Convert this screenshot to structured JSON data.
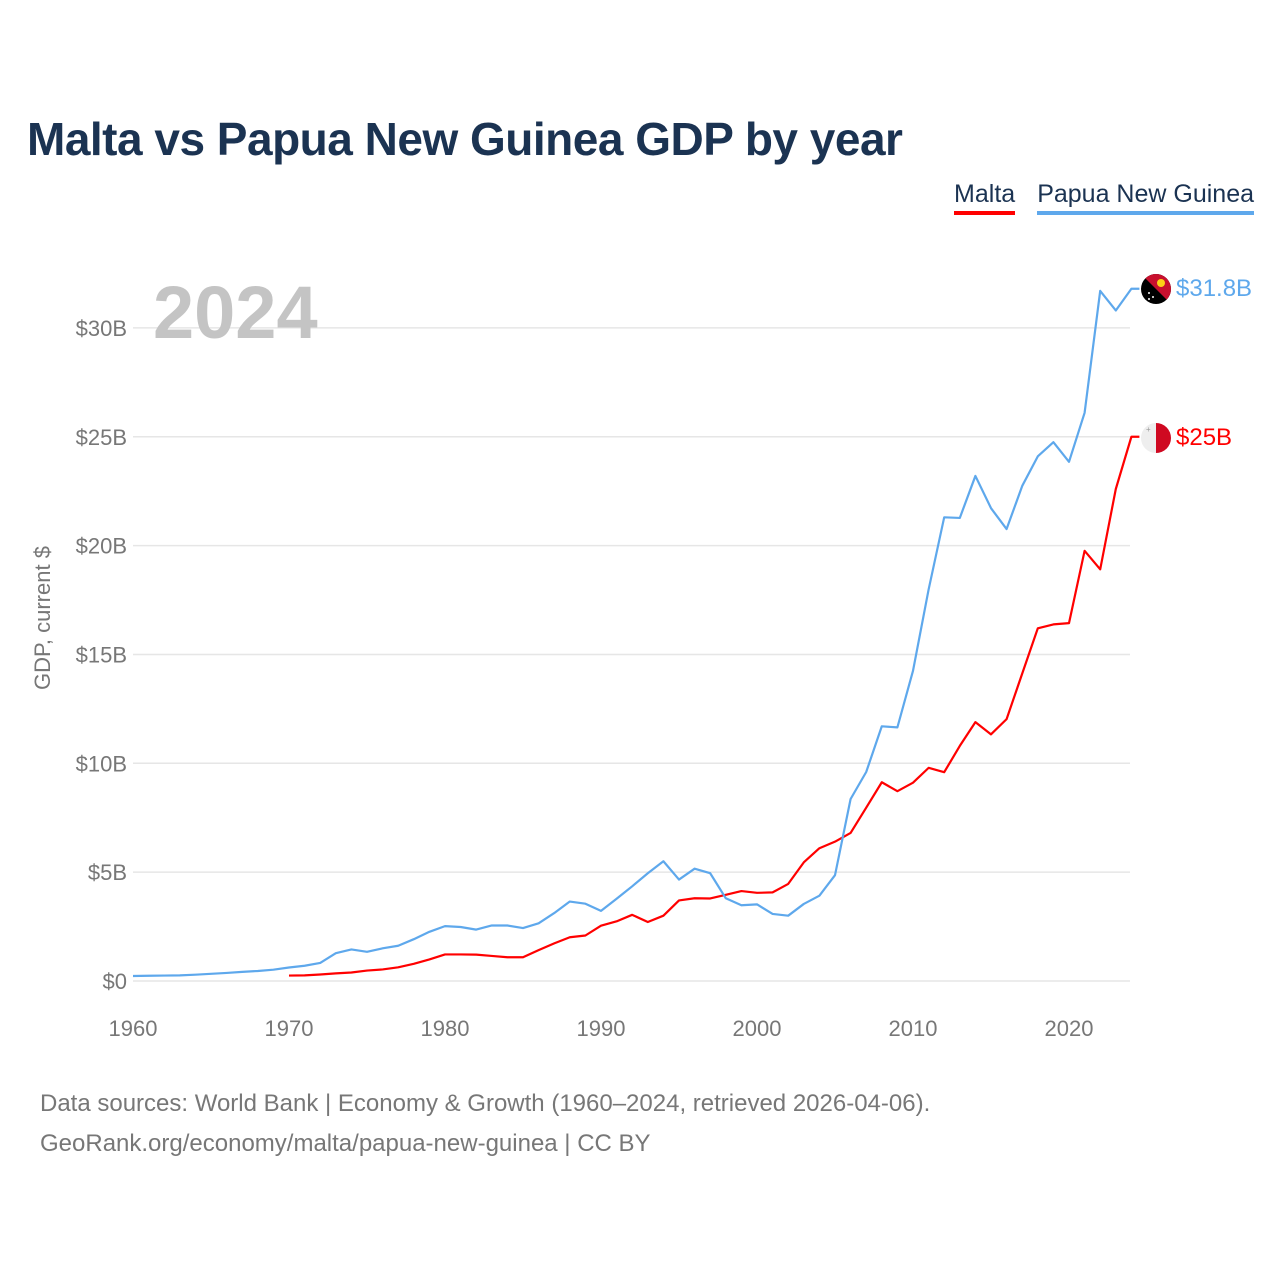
{
  "title": "Malta vs Papua New Guinea GDP by year",
  "legend": [
    "Malta",
    "Papua New Guinea"
  ],
  "year_watermark": "2024",
  "source_line1": "Data sources: World Bank | Economy & Growth (1960–2024, retrieved 2026-04-06).",
  "source_line2": "GeoRank.org/economy/malta/papua-new-guinea | CC BY",
  "colors": {
    "malta": "#ff0000",
    "png": "#5ea8ec",
    "title": "#1b3352"
  },
  "chart_data": {
    "type": "line",
    "title": "Malta vs Papua New Guinea GDP by year",
    "xlabel": "",
    "ylabel": "GDP, current $",
    "xlim": [
      1960,
      2024
    ],
    "ylim": [
      0,
      32
    ],
    "x_ticks": [
      1960,
      1970,
      1980,
      1990,
      2000,
      2010,
      2020
    ],
    "y_ticks": [
      0,
      5,
      10,
      15,
      20,
      25,
      30
    ],
    "y_tick_labels": [
      "$0",
      "$5B",
      "$10B",
      "$15B",
      "$20B",
      "$25B",
      "$30B"
    ],
    "grid": true,
    "legend_position": "top-right",
    "units": "billion USD",
    "series": [
      {
        "name": "Malta",
        "end_label": "$25B",
        "start_year": 1970,
        "values": [
          0.25,
          0.26,
          0.3,
          0.35,
          0.39,
          0.48,
          0.53,
          0.63,
          0.79,
          0.99,
          1.22,
          1.22,
          1.21,
          1.15,
          1.09,
          1.09,
          1.42,
          1.73,
          2.01,
          2.09,
          2.54,
          2.74,
          3.04,
          2.71,
          3.0,
          3.7,
          3.8,
          3.79,
          3.96,
          4.13,
          4.05,
          4.07,
          4.46,
          5.45,
          6.1,
          6.4,
          6.8,
          7.96,
          9.13,
          8.72,
          9.11,
          9.79,
          9.59,
          10.8,
          11.89,
          11.33,
          12.03,
          14.12,
          16.2,
          16.38,
          16.44,
          19.76,
          18.91,
          22.6,
          25.0
        ]
      },
      {
        "name": "Papua New Guinea",
        "end_label": "$31.8B",
        "start_year": 1960,
        "values": [
          0.23,
          0.24,
          0.25,
          0.26,
          0.29,
          0.33,
          0.37,
          0.42,
          0.46,
          0.52,
          0.62,
          0.7,
          0.83,
          1.28,
          1.45,
          1.34,
          1.5,
          1.62,
          1.92,
          2.26,
          2.52,
          2.48,
          2.36,
          2.55,
          2.55,
          2.43,
          2.65,
          3.12,
          3.65,
          3.55,
          3.22,
          3.78,
          4.35,
          4.95,
          5.5,
          4.66,
          5.16,
          4.95,
          3.8,
          3.48,
          3.52,
          3.08,
          3.0,
          3.54,
          3.92,
          4.86,
          8.36,
          9.6,
          11.7,
          11.65,
          14.25,
          17.98,
          21.3,
          21.27,
          23.2,
          21.72,
          20.76,
          22.74,
          24.1,
          24.75,
          23.85,
          26.1,
          31.7,
          30.8,
          31.8
        ]
      }
    ]
  }
}
